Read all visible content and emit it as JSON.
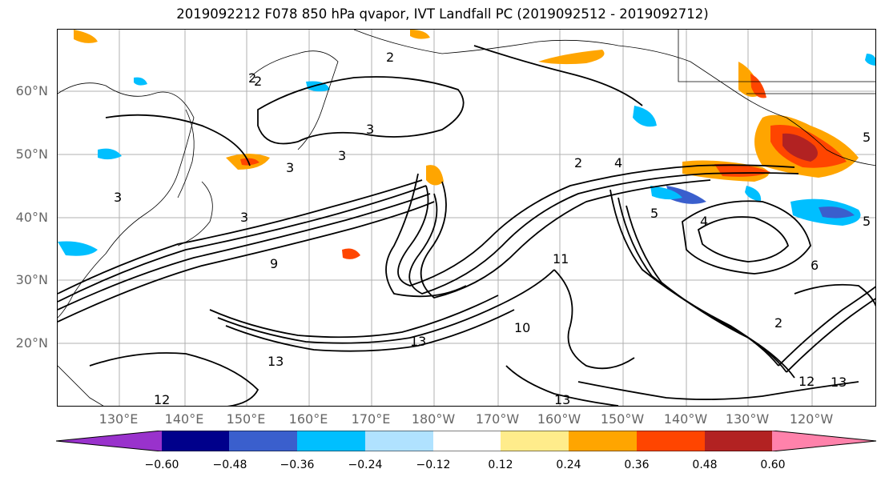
{
  "title": "2019092212 F078 850 hPa qvapor, IVT Landfall PC (2019092512 - 2019092712)",
  "lat_labels": [
    "60°N",
    "50°N",
    "40°N",
    "30°N",
    "20°N"
  ],
  "lon_labels": [
    "130°E",
    "140°E",
    "150°E",
    "160°E",
    "170°E",
    "180°W",
    "170°W",
    "160°W",
    "150°W",
    "140°W",
    "130°W",
    "120°W"
  ],
  "contour_labels": [
    "2",
    "2",
    "2",
    "3",
    "3",
    "3",
    "3",
    "3",
    "4",
    "4",
    "5",
    "5",
    "6",
    "9",
    "10",
    "11",
    "12",
    "12",
    "13",
    "13",
    "13",
    "13",
    "2",
    "2",
    "5"
  ],
  "colorbar": {
    "ticks": [
      "−0.60",
      "−0.48",
      "−0.36",
      "−0.24",
      "−0.12",
      "0.12",
      "0.24",
      "0.36",
      "0.48",
      "0.60"
    ],
    "colors": [
      "#9932cc",
      "#00008b",
      "#3a5fcd",
      "#00bfff",
      "#b0e2ff",
      "#ffffff",
      "#ffec8b",
      "#ffa500",
      "#ff4500",
      "#b22222",
      "#ff82ab"
    ]
  }
}
